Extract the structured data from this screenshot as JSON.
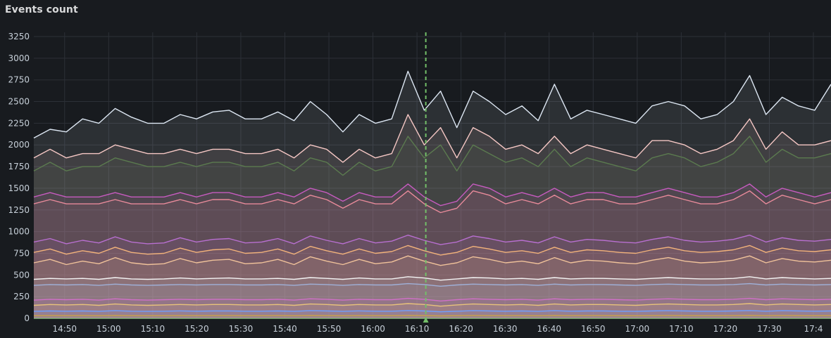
{
  "panel": {
    "title": "Events count"
  },
  "chart_data": {
    "type": "line",
    "title": "Events count",
    "stacked": false,
    "fill_opacity": 0.1,
    "x_ticks": [
      "14:50",
      "15:00",
      "15:10",
      "15:20",
      "15:30",
      "15:40",
      "15:50",
      "16:00",
      "16:10",
      "16:20",
      "16:30",
      "16:40",
      "16:50",
      "17:00",
      "17:10",
      "17:20",
      "17:30",
      "17:4"
    ],
    "x_start": "14:43",
    "x_end": "17:44",
    "y_ticks": [
      0,
      250,
      500,
      750,
      1000,
      1250,
      1500,
      1750,
      2000,
      2250,
      2500,
      2750,
      3000,
      3250
    ],
    "ylim": [
      0,
      3250
    ],
    "grid": true,
    "legend": "none",
    "cursor_time": "16:12",
    "colors": {
      "background": "#181b1f",
      "grid": "#2c3037",
      "cursor": "#73bf69"
    },
    "series": [
      {
        "color": "#dde7f3",
        "values": [
          2080,
          2180,
          2150,
          2300,
          2250,
          2420,
          2320,
          2250,
          2250,
          2350,
          2300,
          2380,
          2400,
          2300,
          2300,
          2380,
          2280,
          2500,
          2350,
          2150,
          2350,
          2250,
          2300,
          2850,
          2400,
          2620,
          2200,
          2620,
          2500,
          2350,
          2450,
          2280,
          2700,
          2300,
          2400,
          2350,
          2300,
          2250,
          2450,
          2500,
          2450,
          2300,
          2350,
          2500,
          2800,
          2350,
          2550,
          2450,
          2400,
          2700
        ]
      },
      {
        "color": "#f5c7c4",
        "values": [
          1850,
          1950,
          1850,
          1900,
          1900,
          2000,
          1950,
          1900,
          1900,
          1950,
          1900,
          1950,
          1950,
          1900,
          1900,
          1950,
          1850,
          2000,
          1950,
          1800,
          1950,
          1850,
          1900,
          2350,
          2000,
          2200,
          1850,
          2200,
          2100,
          1950,
          2000,
          1900,
          2100,
          1900,
          2000,
          1950,
          1900,
          1850,
          2050,
          2050,
          2000,
          1900,
          1950,
          2050,
          2300,
          1950,
          2150,
          2000,
          2000,
          2050
        ]
      },
      {
        "color": "#5b7a4f",
        "values": [
          1700,
          1800,
          1700,
          1750,
          1750,
          1850,
          1800,
          1750,
          1750,
          1800,
          1750,
          1800,
          1800,
          1750,
          1750,
          1800,
          1700,
          1850,
          1800,
          1650,
          1800,
          1700,
          1750,
          2100,
          1850,
          2000,
          1700,
          2000,
          1900,
          1800,
          1850,
          1750,
          1950,
          1750,
          1850,
          1800,
          1750,
          1700,
          1850,
          1900,
          1850,
          1750,
          1800,
          1900,
          2100,
          1800,
          1950,
          1850,
          1850,
          1900
        ]
      },
      {
        "color": "#c65bbf",
        "values": [
          1400,
          1450,
          1400,
          1400,
          1400,
          1450,
          1400,
          1400,
          1400,
          1450,
          1400,
          1450,
          1450,
          1400,
          1400,
          1450,
          1400,
          1500,
          1450,
          1350,
          1450,
          1400,
          1400,
          1550,
          1400,
          1300,
          1350,
          1550,
          1500,
          1400,
          1450,
          1400,
          1500,
          1400,
          1450,
          1450,
          1400,
          1400,
          1450,
          1500,
          1450,
          1400,
          1400,
          1450,
          1550,
          1400,
          1500,
          1450,
          1400,
          1450
        ]
      },
      {
        "color": "#e88a9a",
        "values": [
          1320,
          1370,
          1320,
          1320,
          1320,
          1370,
          1320,
          1320,
          1320,
          1370,
          1320,
          1370,
          1370,
          1320,
          1320,
          1370,
          1320,
          1420,
          1370,
          1270,
          1370,
          1320,
          1320,
          1470,
          1320,
          1220,
          1270,
          1470,
          1420,
          1320,
          1370,
          1320,
          1420,
          1320,
          1370,
          1370,
          1320,
          1320,
          1370,
          1420,
          1370,
          1320,
          1320,
          1370,
          1470,
          1320,
          1420,
          1370,
          1320,
          1370
        ]
      },
      {
        "color": "#b86fd0",
        "values": [
          880,
          920,
          860,
          900,
          870,
          940,
          880,
          860,
          870,
          930,
          880,
          910,
          920,
          870,
          880,
          920,
          860,
          950,
          900,
          860,
          920,
          870,
          890,
          960,
          900,
          850,
          880,
          950,
          920,
          880,
          900,
          870,
          940,
          880,
          910,
          900,
          880,
          870,
          910,
          940,
          900,
          880,
          890,
          910,
          960,
          880,
          930,
          900,
          890,
          910
        ]
      },
      {
        "color": "#f2b27a",
        "values": [
          760,
          800,
          740,
          780,
          750,
          820,
          760,
          740,
          750,
          810,
          760,
          790,
          800,
          750,
          760,
          800,
          740,
          830,
          780,
          740,
          800,
          750,
          770,
          840,
          780,
          730,
          760,
          830,
          800,
          760,
          780,
          750,
          820,
          760,
          790,
          780,
          760,
          750,
          790,
          820,
          780,
          760,
          770,
          790,
          840,
          760,
          810,
          780,
          770,
          790
        ]
      },
      {
        "color": "#f0c29a",
        "values": [
          640,
          680,
          620,
          660,
          630,
          700,
          640,
          620,
          630,
          690,
          640,
          670,
          680,
          630,
          640,
          680,
          620,
          710,
          660,
          620,
          680,
          630,
          650,
          720,
          660,
          610,
          640,
          710,
          680,
          640,
          660,
          630,
          700,
          640,
          670,
          660,
          640,
          630,
          670,
          700,
          660,
          640,
          650,
          670,
          720,
          640,
          690,
          660,
          650,
          670
        ]
      },
      {
        "color": "#f4f4f4",
        "values": [
          450,
          460,
          455,
          460,
          450,
          470,
          455,
          450,
          455,
          465,
          455,
          460,
          465,
          455,
          455,
          460,
          450,
          470,
          460,
          450,
          465,
          455,
          455,
          480,
          465,
          440,
          455,
          470,
          465,
          455,
          460,
          450,
          470,
          455,
          460,
          460,
          455,
          450,
          460,
          470,
          460,
          455,
          455,
          460,
          480,
          455,
          470,
          460,
          455,
          460
        ]
      },
      {
        "color": "#9fb0d8",
        "values": [
          380,
          390,
          385,
          390,
          380,
          395,
          385,
          380,
          385,
          390,
          385,
          390,
          390,
          385,
          385,
          390,
          380,
          395,
          390,
          380,
          390,
          385,
          385,
          400,
          390,
          370,
          385,
          395,
          390,
          385,
          390,
          380,
          395,
          385,
          390,
          390,
          385,
          380,
          390,
          395,
          390,
          385,
          385,
          390,
          400,
          385,
          395,
          390,
          385,
          390
        ]
      },
      {
        "color": "#d070c8",
        "values": [
          210,
          220,
          215,
          220,
          210,
          225,
          215,
          210,
          215,
          220,
          215,
          220,
          220,
          215,
          215,
          220,
          210,
          225,
          220,
          210,
          220,
          215,
          215,
          230,
          220,
          200,
          215,
          225,
          220,
          215,
          220,
          210,
          225,
          215,
          220,
          220,
          215,
          210,
          220,
          225,
          220,
          215,
          215,
          220,
          230,
          215,
          225,
          220,
          215,
          220
        ]
      },
      {
        "color": "#e8c27a",
        "values": [
          150,
          160,
          155,
          160,
          150,
          165,
          155,
          150,
          155,
          160,
          155,
          160,
          160,
          155,
          155,
          160,
          150,
          165,
          160,
          150,
          160,
          155,
          155,
          170,
          160,
          140,
          155,
          165,
          160,
          155,
          160,
          150,
          165,
          155,
          160,
          160,
          155,
          150,
          160,
          165,
          160,
          155,
          155,
          160,
          170,
          155,
          165,
          160,
          155,
          160
        ]
      },
      {
        "color": "#6e9fff",
        "values": [
          80,
          85,
          82,
          85,
          80,
          88,
          82,
          80,
          82,
          86,
          82,
          85,
          86,
          82,
          82,
          85,
          80,
          88,
          85,
          80,
          86,
          82,
          82,
          90,
          85,
          75,
          82,
          88,
          85,
          82,
          85,
          80,
          88,
          82,
          85,
          85,
          82,
          80,
          85,
          88,
          85,
          82,
          82,
          85,
          90,
          82,
          88,
          85,
          82,
          85
        ]
      },
      {
        "color": "#c8a24a",
        "values": [
          30,
          32,
          31,
          32,
          30,
          33,
          31,
          30,
          31,
          32,
          31,
          32,
          32,
          31,
          31,
          32,
          30,
          33,
          32,
          30,
          32,
          31,
          31,
          34,
          32,
          28,
          31,
          33,
          32,
          31,
          32,
          30,
          33,
          31,
          32,
          32,
          31,
          30,
          32,
          33,
          32,
          31,
          31,
          32,
          34,
          31,
          33,
          32,
          31,
          32
        ]
      }
    ]
  }
}
